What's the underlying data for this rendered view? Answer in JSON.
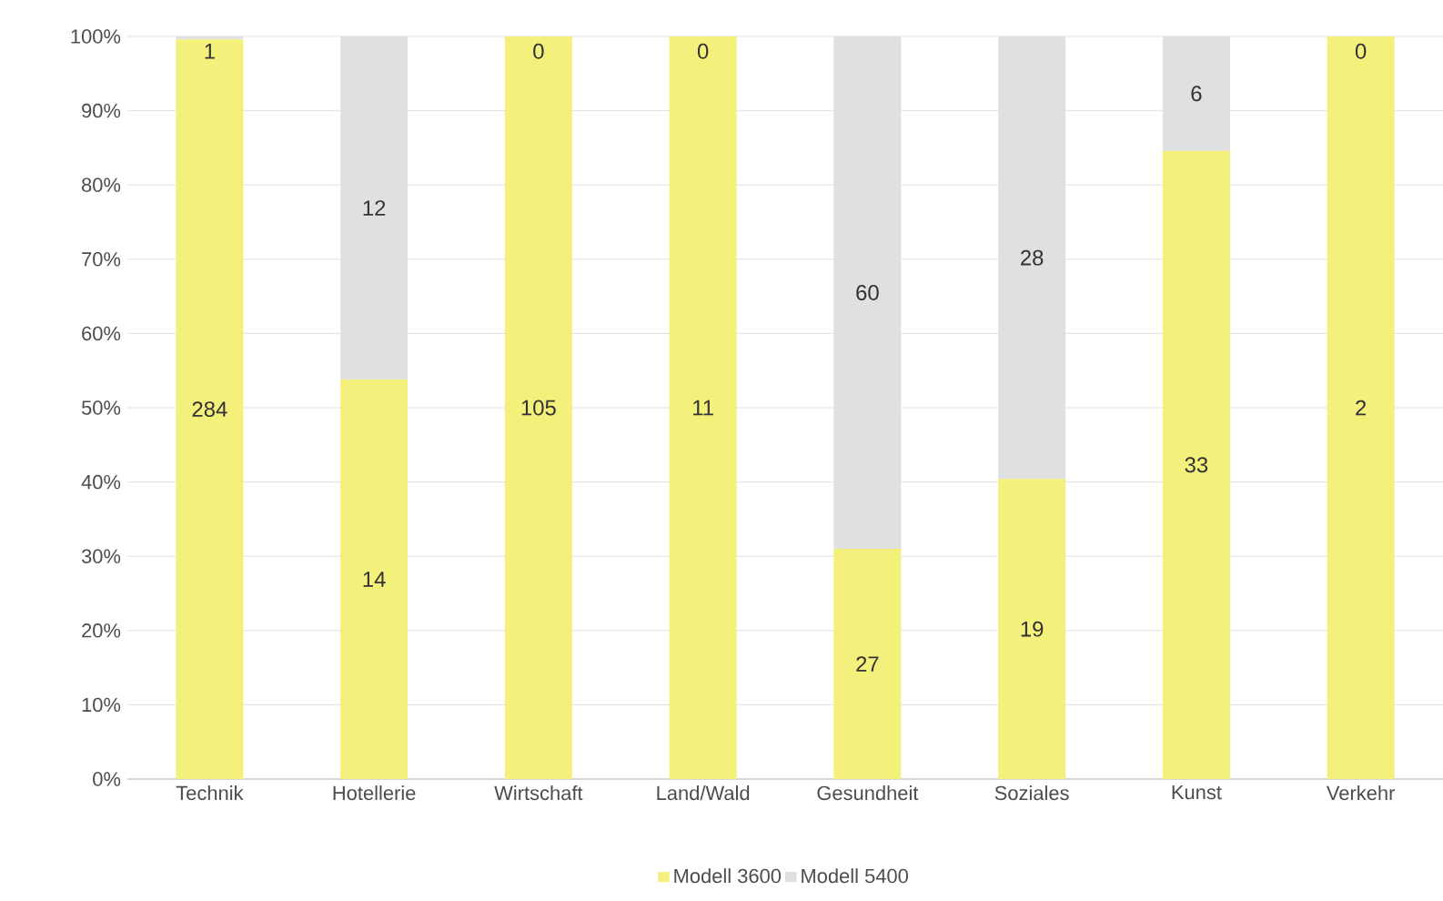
{
  "chart_data": {
    "type": "bar",
    "stacked": true,
    "categories": [
      "Technik",
      "Hotellerie",
      "Wirtschaft",
      "Land/Wald",
      "Gesundheit",
      "Soziales",
      "Kunst",
      "Verkehr"
    ],
    "series": [
      {
        "name": "Modell 3600",
        "color": "#f4f07c",
        "values": [
          99.6,
          53.8,
          100,
          100,
          31.0,
          40.4,
          84.6,
          100
        ]
      },
      {
        "name": "Modell 5400",
        "color": "#e0e0e0",
        "values": [
          0.4,
          46.2,
          0,
          0,
          69.0,
          59.6,
          15.4,
          0
        ]
      }
    ],
    "annotations": [
      "284",
      "1",
      "14",
      "12",
      "105",
      "0",
      "11",
      "0",
      "27",
      "60",
      "19",
      "28",
      "33",
      "6",
      "2",
      "0"
    ],
    "ylim": [
      0,
      100
    ],
    "yticks": [
      {
        "value": 0,
        "label": "0%"
      },
      {
        "value": 10,
        "label": "10%"
      },
      {
        "value": 20,
        "label": "20%"
      },
      {
        "value": 30,
        "label": "30%"
      },
      {
        "value": 40,
        "label": "40%"
      },
      {
        "value": 50,
        "label": "50%"
      },
      {
        "value": 60,
        "label": "60%"
      },
      {
        "value": 70,
        "label": "70%"
      },
      {
        "value": 80,
        "label": "80%"
      },
      {
        "value": 90,
        "label": "90%"
      },
      {
        "value": 100,
        "label": "100%"
      }
    ],
    "grid": "y",
    "legend": "bottom"
  }
}
